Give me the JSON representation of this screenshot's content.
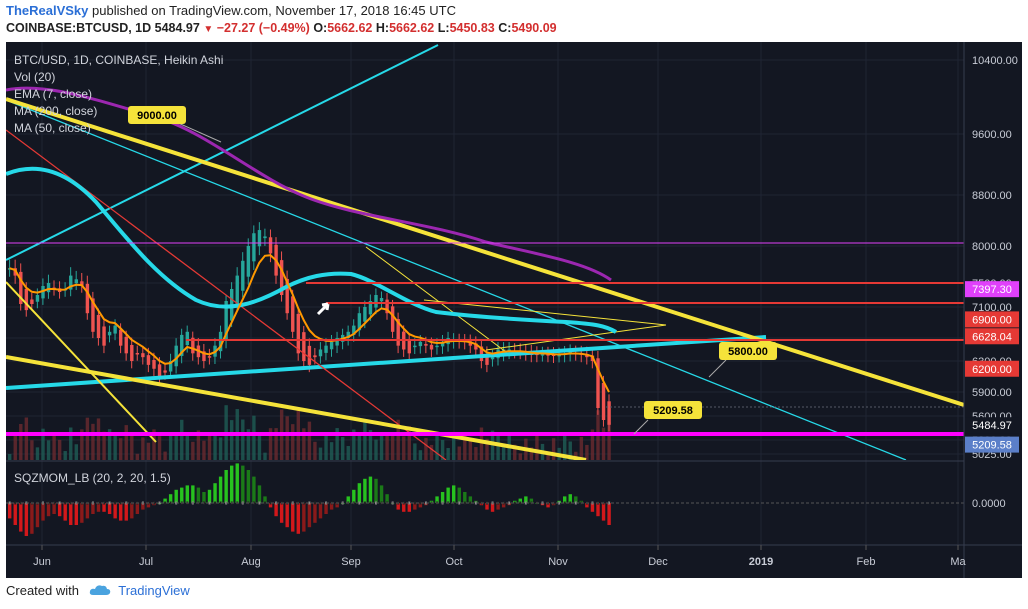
{
  "header": {
    "author": "TheRealVSky",
    "published": "published on TradingView.com, November 17, 2018 16:45 UTC",
    "symbol": "COINBASE:BTCUSD, 1D",
    "last": "5484.97",
    "change": "−27.27 (−0.49%)",
    "o_label": "O:",
    "o": "5662.62",
    "h_label": "H:",
    "h": "5662.62",
    "l_label": "L:",
    "l": "5450.83",
    "c_label": "C:",
    "c": "5490.09"
  },
  "legend": {
    "title": "BTC/USD, 1D, COINBASE, Heikin Ashi",
    "items": [
      "Vol (20)",
      "EMA (7, close)",
      "MA (200, close)",
      "MA (50, close)"
    ]
  },
  "indicator": {
    "label": "SQZMOM_LB (20, 2, 20, 1.5)",
    "zero_tick": "0.0000"
  },
  "annotations": [
    "9000.00",
    "5800.00",
    "5209.58"
  ],
  "footer": {
    "created": "Created with",
    "brand": "TradingView"
  },
  "colors": {
    "bg": "#131722",
    "up": "#26a69a",
    "down": "#ef5350",
    "yellow": "#f5e33a",
    "cyan": "#26d9e8",
    "purple": "#9c27b0",
    "orange": "#ff9800",
    "red": "#e53935",
    "magenta": "#ff00ff",
    "sqz_up": "#27c21f",
    "sqz_down": "#d3181b"
  },
  "chart_data": {
    "type": "candlestick",
    "x_ticks": [
      "Jun",
      "Jul",
      "Aug",
      "Sep",
      "Oct",
      "Nov",
      "Dec",
      "2019",
      "Feb",
      "Ma"
    ],
    "y_ticks": [
      "10400.00",
      "9600.00",
      "8800.00",
      "8000.00",
      "7500.00",
      "7100.00",
      "6600.00",
      "6300.00",
      "5900.00",
      "5600.00",
      "5300.00",
      "5025.00"
    ],
    "price_labels": [
      "7397.30",
      "6900.00",
      "6628.04",
      "6200.00",
      "5484.97",
      "5209.58"
    ],
    "close_path": [
      7700,
      7600,
      7150,
      7050,
      7150,
      7300,
      7450,
      7500,
      7400,
      7350,
      7400,
      7600,
      7550,
      7450,
      7000,
      6700,
      6600,
      6500,
      6700,
      6800,
      6500,
      6400,
      6300,
      6400,
      6350,
      6250,
      6200,
      6100,
      6150,
      6300,
      6500,
      6650,
      6700,
      6400,
      6350,
      6300,
      6350,
      6500,
      6700,
      7200,
      7400,
      7600,
      7800,
      8000,
      8200,
      8250,
      8150,
      7900,
      7600,
      7300,
      7000,
      6700,
      6400,
      6300,
      6250,
      6350,
      6450,
      6500,
      6550,
      6600,
      6650,
      6700,
      6800,
      7000,
      7100,
      7200,
      7300,
      7250,
      7000,
      6700,
      6500,
      6450,
      6400,
      6500,
      6550,
      6500,
      6450,
      6500,
      6550,
      6600,
      6580,
      6560,
      6550,
      6500,
      6450,
      6300,
      6250,
      6350,
      6450,
      6450,
      6450,
      6430,
      6420,
      6400,
      6380,
      6380,
      6390,
      6380,
      6370,
      6380,
      6400,
      6420,
      6400,
      6380,
      6350,
      6300,
      5700,
      5550,
      5490
    ],
    "sqz_mom": [
      -0.7,
      -1.0,
      -1.3,
      -1.5,
      -1.4,
      -1.1,
      -0.8,
      -0.6,
      -0.5,
      -0.6,
      -0.8,
      -1.0,
      -1.0,
      -0.9,
      -0.7,
      -0.5,
      -0.4,
      -0.4,
      -0.5,
      -0.7,
      -0.8,
      -0.8,
      -0.7,
      -0.5,
      -0.3,
      -0.2,
      -0.1,
      0.0,
      0.2,
      0.4,
      0.6,
      0.7,
      0.8,
      0.8,
      0.7,
      0.5,
      0.6,
      0.9,
      1.2,
      1.5,
      1.7,
      1.8,
      1.7,
      1.5,
      1.2,
      0.8,
      0.3,
      -0.2,
      -0.6,
      -0.9,
      -1.1,
      -1.3,
      -1.4,
      -1.3,
      -1.1,
      -0.9,
      -0.7,
      -0.5,
      -0.3,
      -0.2,
      0.0,
      0.3,
      0.6,
      0.9,
      1.1,
      1.2,
      1.1,
      0.8,
      0.4,
      0.0,
      -0.3,
      -0.4,
      -0.4,
      -0.3,
      -0.2,
      -0.1,
      0.1,
      0.3,
      0.5,
      0.7,
      0.8,
      0.7,
      0.5,
      0.3,
      0.1,
      -0.1,
      -0.3,
      -0.4,
      -0.3,
      -0.2,
      -0.1,
      0.1,
      0.2,
      0.3,
      0.2,
      0.0,
      -0.1,
      -0.2,
      -0.1,
      0.1,
      0.3,
      0.4,
      0.3,
      0.1,
      -0.2,
      -0.4,
      -0.6,
      -0.8,
      -1.0
    ]
  }
}
